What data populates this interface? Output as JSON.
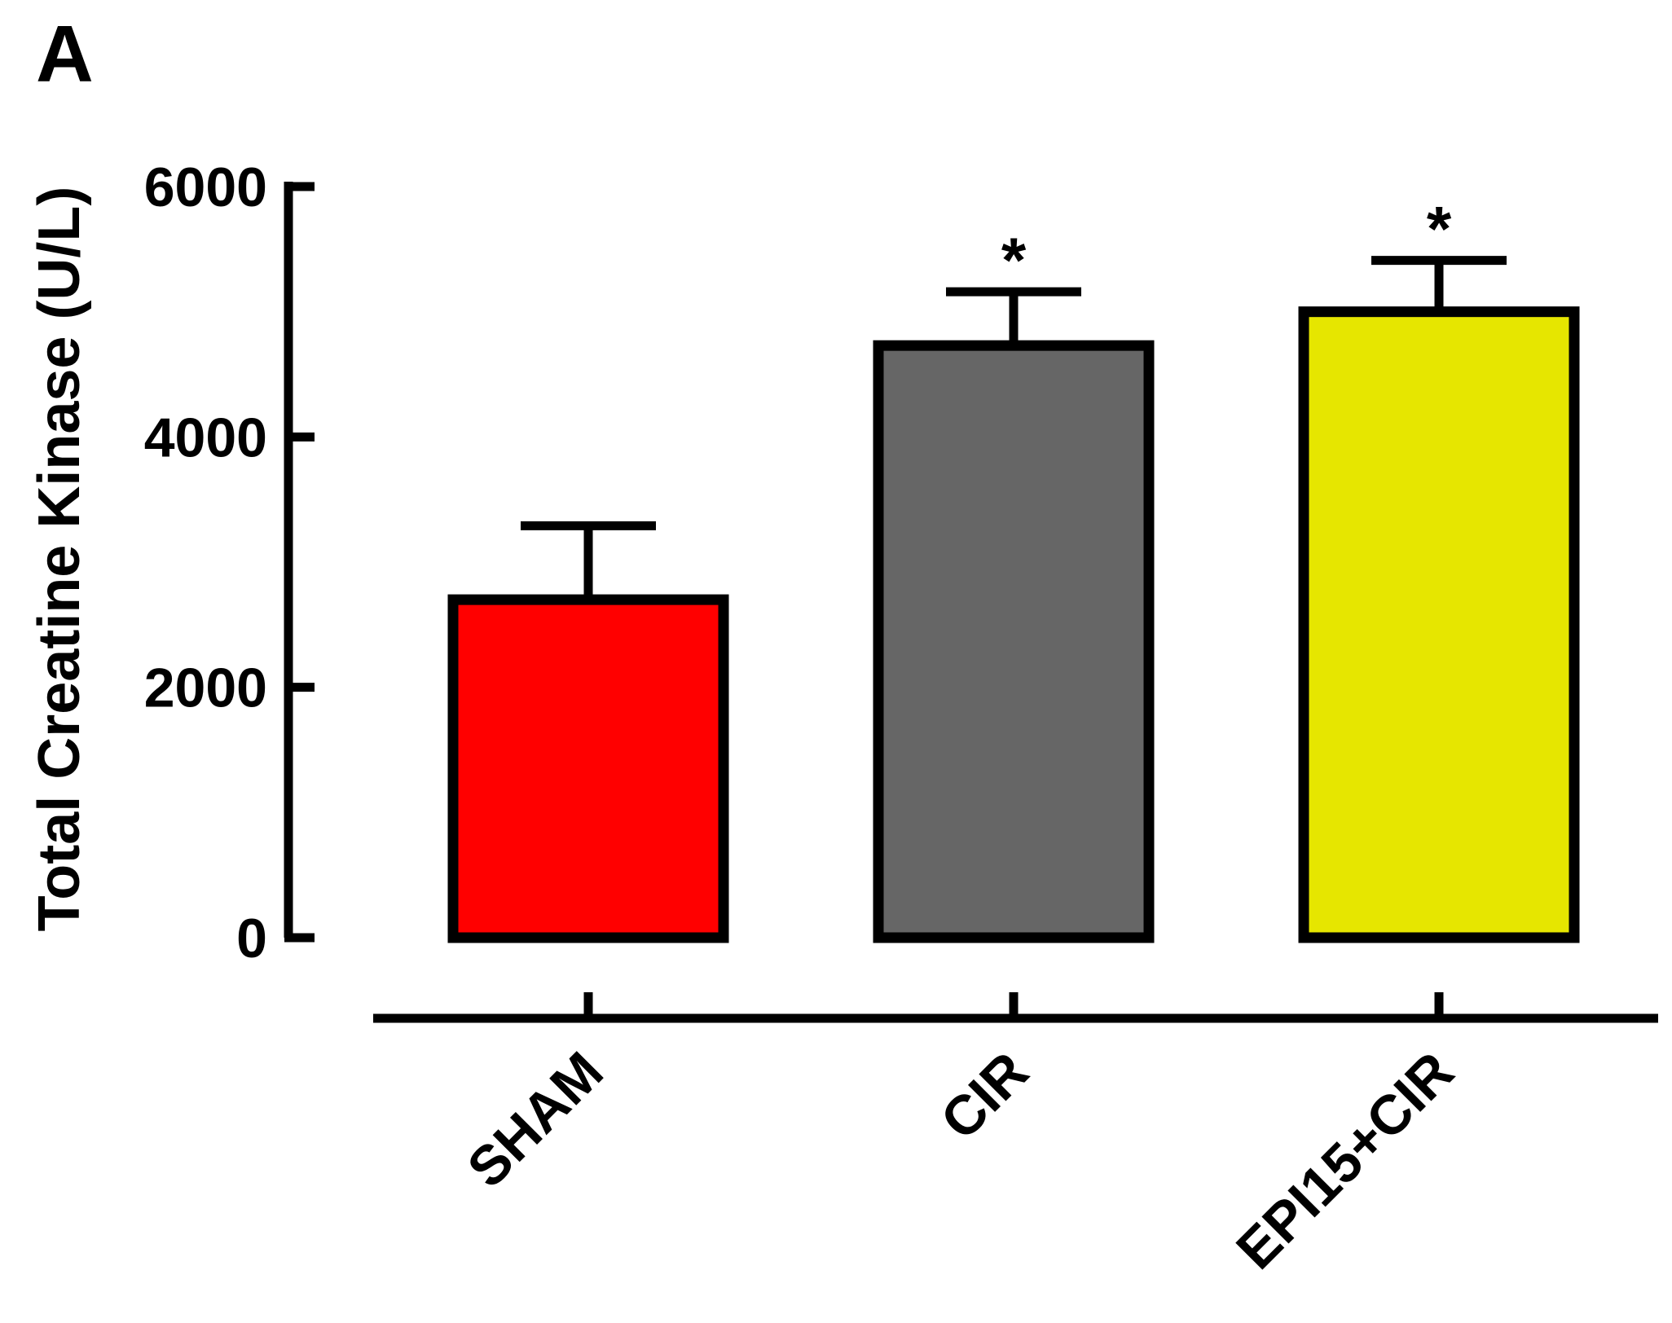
{
  "panel_label": "A",
  "chart_data": {
    "type": "bar",
    "categories": [
      "SHAM",
      "CIR",
      "EPI15+CIR"
    ],
    "values": [
      2700,
      4730,
      5000
    ],
    "errors": [
      590,
      430,
      410
    ],
    "significance": [
      "",
      "*",
      "*"
    ],
    "colors": [
      "#ff0000",
      "#666666",
      "#e6e600"
    ],
    "title": "",
    "xlabel": "",
    "ylabel": "Total Creatine Kinase (U/L)",
    "ylim": [
      0,
      6000
    ],
    "yticks": [
      0,
      2000,
      4000,
      6000
    ],
    "grid": false,
    "legend": "none"
  }
}
